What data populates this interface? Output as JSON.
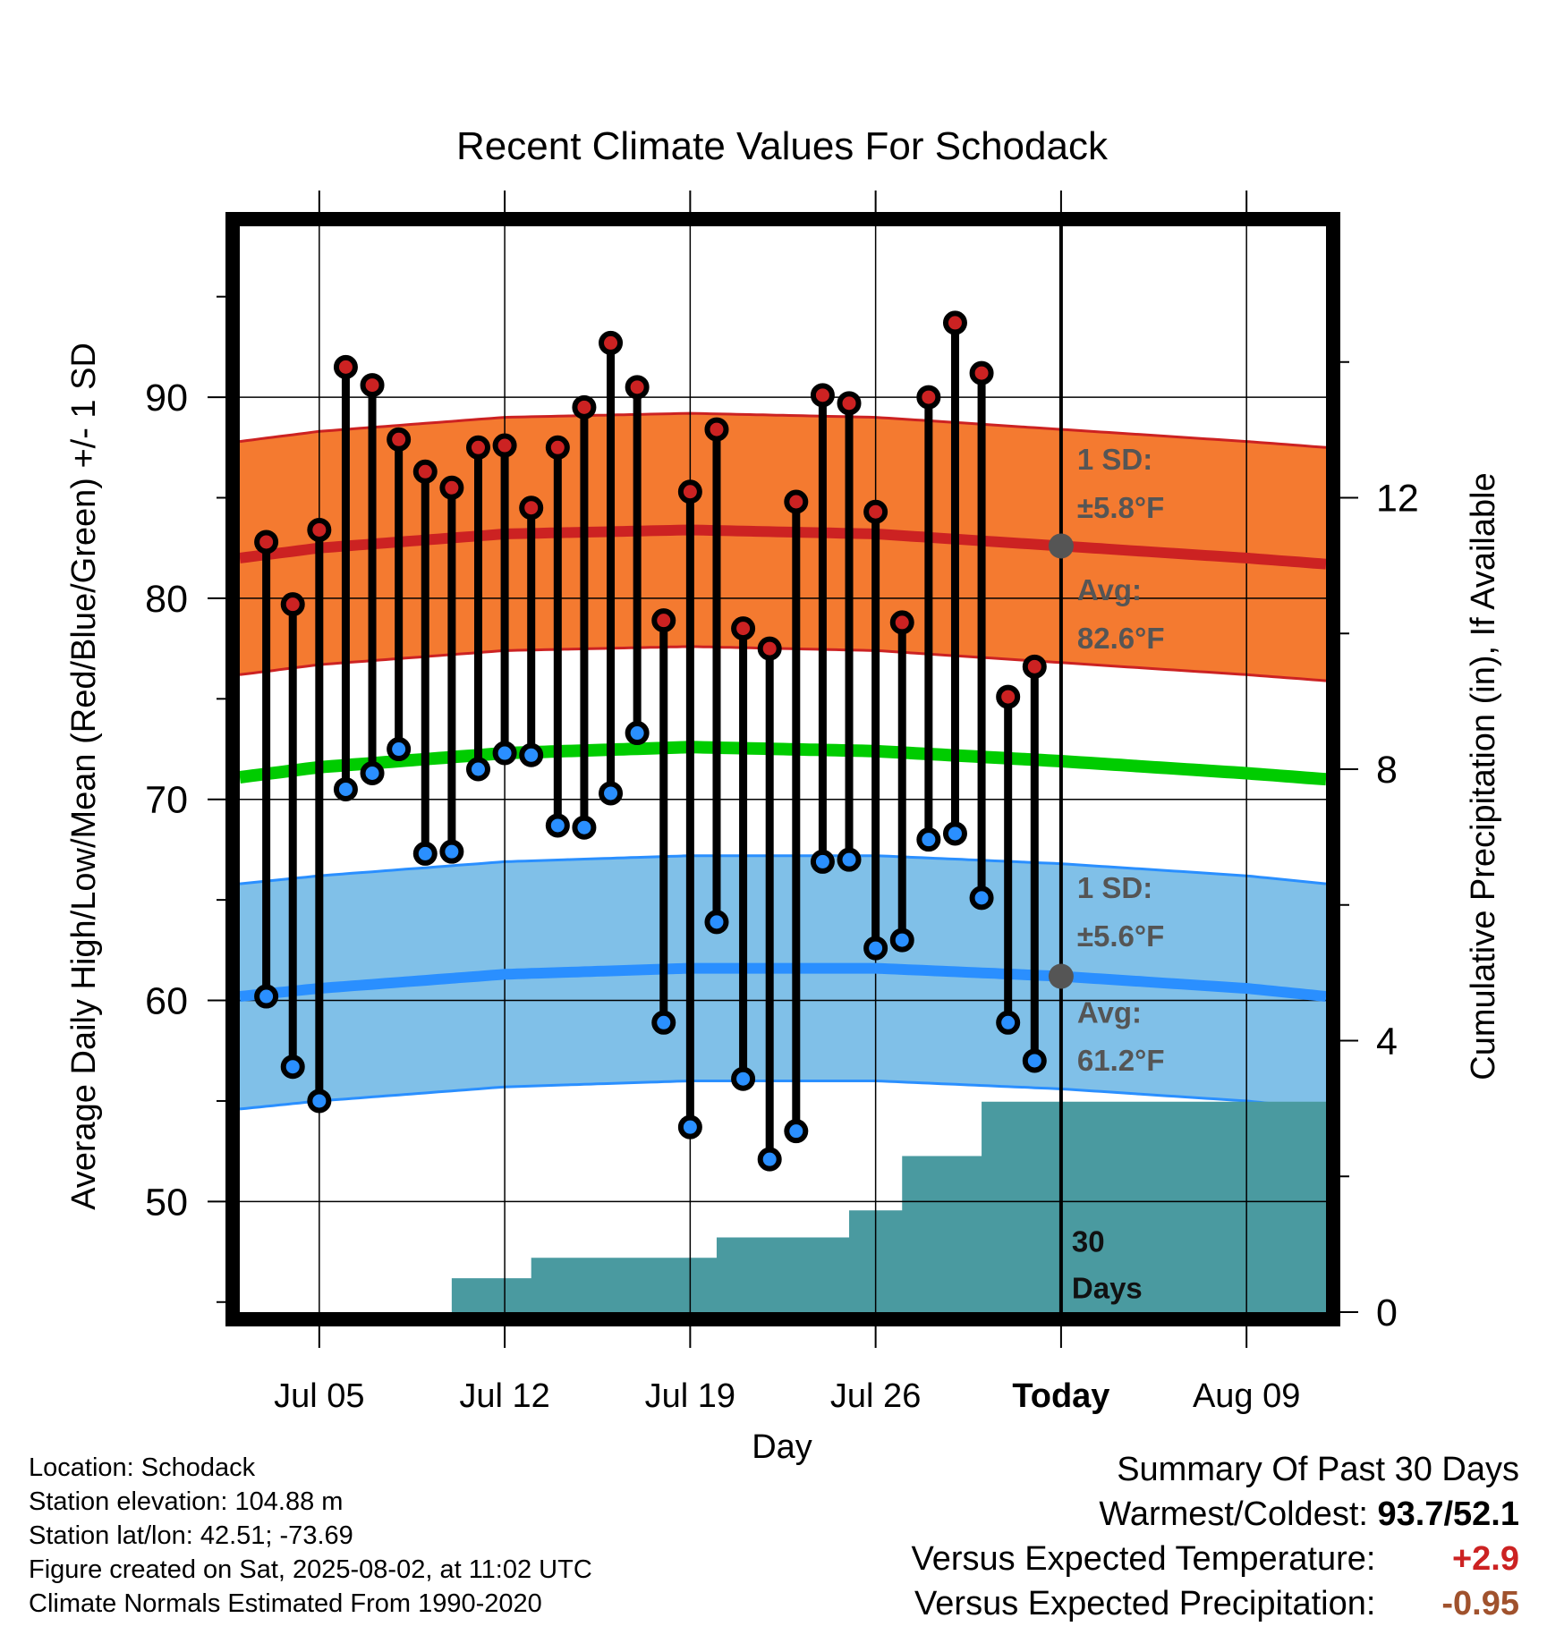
{
  "chart_data": {
    "type": "line",
    "title": "Recent Climate Values For Schodack",
    "xlabel": "Day",
    "ylabel": "Average Daily High/Low/Mean (Red/Blue/Green) +/- 1 SD",
    "y2label": "Cumulative Precipitation (in), If Available",
    "ylim": [
      44.5,
      98.5
    ],
    "y2lim": [
      0,
      16
    ],
    "y_ticks": [
      50,
      60,
      70,
      80,
      90
    ],
    "y2_ticks": [
      0,
      4,
      8,
      12
    ],
    "x_range": [
      "2025-07-02",
      "2025-08-12"
    ],
    "x_tick_labels": [
      "Jul 05",
      "Jul 12",
      "Jul 19",
      "Jul 26",
      "Today",
      "Aug 09"
    ],
    "x_tick_dates": [
      "2025-07-05",
      "2025-07-12",
      "2025-07-19",
      "2025-07-26",
      "2025-08-02",
      "2025-08-09"
    ],
    "today": "2025-08-02",
    "today_label": "Today",
    "grid": true,
    "days": [
      "2025-07-03",
      "2025-07-04",
      "2025-07-05",
      "2025-07-06",
      "2025-07-07",
      "2025-07-08",
      "2025-07-09",
      "2025-07-10",
      "2025-07-11",
      "2025-07-12",
      "2025-07-13",
      "2025-07-14",
      "2025-07-15",
      "2025-07-16",
      "2025-07-17",
      "2025-07-18",
      "2025-07-19",
      "2025-07-20",
      "2025-07-21",
      "2025-07-22",
      "2025-07-23",
      "2025-07-24",
      "2025-07-25",
      "2025-07-26",
      "2025-07-27",
      "2025-07-28",
      "2025-07-29",
      "2025-07-30",
      "2025-07-31",
      "2025-08-01"
    ],
    "series": [
      {
        "name": "High",
        "color": "#cc2222",
        "values": [
          82.8,
          79.7,
          83.4,
          91.5,
          90.6,
          87.9,
          86.3,
          85.5,
          87.5,
          87.6,
          84.5,
          87.5,
          89.5,
          92.7,
          90.5,
          78.9,
          85.3,
          88.4,
          78.5,
          77.5,
          84.8,
          90.1,
          89.7,
          84.3,
          78.8,
          90.0,
          93.7,
          91.2,
          75.1,
          76.6
        ]
      },
      {
        "name": "Low",
        "color": "#2a8fff",
        "values": [
          60.2,
          56.7,
          55.0,
          70.5,
          71.3,
          72.5,
          67.3,
          67.4,
          71.5,
          72.3,
          72.2,
          68.7,
          68.6,
          70.3,
          73.3,
          58.9,
          53.7,
          63.9,
          56.1,
          52.1,
          53.5,
          66.9,
          67.0,
          62.6,
          63.0,
          68.0,
          68.3,
          65.1,
          58.9,
          57.0
        ]
      }
    ],
    "normals": {
      "dates": [
        "2025-07-02",
        "2025-07-05",
        "2025-07-12",
        "2025-07-19",
        "2025-07-26",
        "2025-08-02",
        "2025-08-09",
        "2025-08-12"
      ],
      "high_avg": [
        82.0,
        82.5,
        83.2,
        83.4,
        83.2,
        82.6,
        82.0,
        81.7
      ],
      "high_sd": 5.8,
      "low_avg": [
        60.2,
        60.6,
        61.3,
        61.6,
        61.6,
        61.2,
        60.6,
        60.2
      ],
      "low_sd": 5.6,
      "mean_avg": [
        71.1,
        71.6,
        72.3,
        72.6,
        72.4,
        71.9,
        71.3,
        71.0
      ],
      "high_color": "#f47a30",
      "low_color": "#80c0e8",
      "mean_color": "#00cc00"
    },
    "precip_steps": [
      {
        "date": "2025-07-09",
        "value": 0
      },
      {
        "date": "2025-07-10",
        "value": 0.5
      },
      {
        "date": "2025-07-13",
        "value": 0.8
      },
      {
        "date": "2025-07-20",
        "value": 1.1
      },
      {
        "date": "2025-07-25",
        "value": 1.5
      },
      {
        "date": "2025-07-27",
        "value": 2.3
      },
      {
        "date": "2025-07-30",
        "value": 3.1
      },
      {
        "date": "2025-08-12",
        "value": 3.1
      }
    ],
    "precip_color": "#4a9aa0",
    "annotations": {
      "high_sd_line1": "1 SD:",
      "high_sd_line2": "±5.8°F",
      "high_avg_line1": "Avg:",
      "high_avg_line2": "82.6°F",
      "low_sd_line1": "1 SD:",
      "low_sd_line2": "±5.6°F",
      "low_avg_line1": "Avg:",
      "low_avg_line2": "61.2°F",
      "days_line1": "30",
      "days_line2": "Days",
      "today_high_avg": 82.6,
      "today_low_avg": 61.2
    }
  },
  "footer": {
    "location": "Location: Schodack",
    "elevation": "Station elevation: 104.88 m",
    "latlon": "Station lat/lon: 42.51; -73.69",
    "created": "Figure created on Sat, 2025-08-02, at 11:02 UTC",
    "normals": "Climate Normals Estimated From 1990-2020"
  },
  "summary": {
    "title": "Summary Of Past 30 Days",
    "warm_cold_label": "Warmest/Coldest:",
    "warm_cold_value": "93.7/52.1",
    "temp_label": "Versus Expected Temperature:",
    "temp_value": "+2.9",
    "temp_color": "#cc2222",
    "precip_label": "Versus Expected Precipitation:",
    "precip_value": "-0.95",
    "precip_color": "#a0522d"
  }
}
